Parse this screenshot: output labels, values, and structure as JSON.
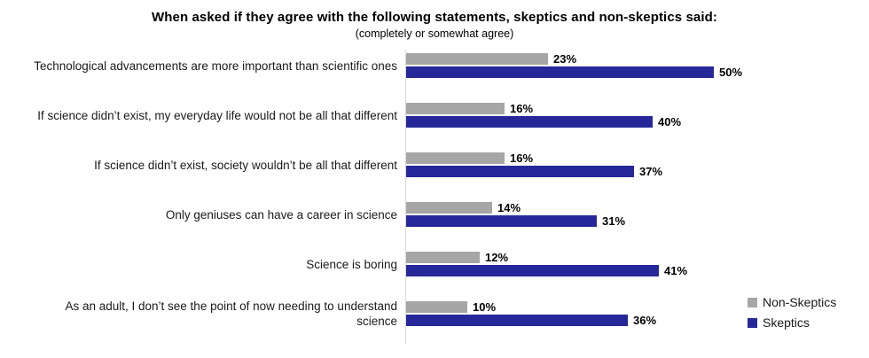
{
  "title": "When asked if they agree with the following statements, skeptics and non-skeptics said:",
  "subtitle": "(completely or somewhat agree)",
  "colors": {
    "non_skeptics_bar": "#a6a6a6",
    "skeptics_bar": "#26289a",
    "axis_line": "#d9d9d9",
    "text": "#000000"
  },
  "legend": {
    "position": "right",
    "items": [
      {
        "label": "Non-Skeptics",
        "color": "#a6a6a6"
      },
      {
        "label": "Skeptics",
        "color": "#26289a"
      }
    ]
  },
  "chart_data": {
    "type": "bar",
    "orientation": "horizontal",
    "title": "When asked if they agree with the following statements, skeptics and non-skeptics said:",
    "subtitle": "(completely or somewhat agree)",
    "categories": [
      "Technological advancements are more important than scientific ones",
      "If science didn’t exist, my everyday life would not be all that different",
      "If science didn’t exist, society wouldn’t be all that different",
      "Only geniuses can have a career in science",
      "Science is boring",
      "As an adult, I don’t see the point of now needing to understand science"
    ],
    "series": [
      {
        "name": "Non-Skeptics",
        "color": "#a6a6a6",
        "values": [
          23,
          16,
          16,
          14,
          12,
          10
        ]
      },
      {
        "name": "Skeptics",
        "color": "#26289a",
        "values": [
          50,
          40,
          37,
          31,
          41,
          36
        ]
      }
    ],
    "value_labels": [
      [
        "23%",
        "50%"
      ],
      [
        "16%",
        "40%"
      ],
      [
        "16%",
        "37%"
      ],
      [
        "14%",
        "31%"
      ],
      [
        "12%",
        "41%"
      ],
      [
        "10%",
        "36%"
      ]
    ],
    "value_suffix": "%",
    "xlim": [
      0,
      50
    ],
    "grid": false,
    "legend_position": "right",
    "data_labels": true
  }
}
